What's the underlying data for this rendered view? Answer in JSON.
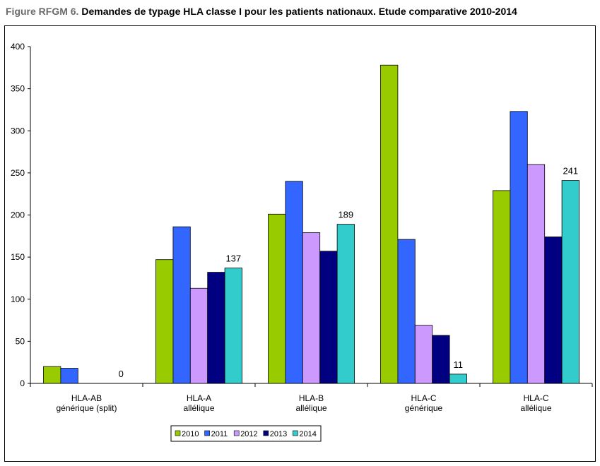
{
  "title_prefix": "Figure RFGM 6.",
  "title_main": "Demandes de typage HLA classe I pour les patients nationaux. Etude comparative 2010-2014",
  "chart_data": {
    "type": "bar",
    "title": "Demandes de typage HLA classe I pour les patients nationaux. Etude comparative 2010-2014",
    "categories": [
      [
        "HLA-AB",
        "générique (split)"
      ],
      [
        "HLA-A",
        "allélique"
      ],
      [
        "HLA-B",
        "allélique"
      ],
      [
        "HLA-C",
        "générique"
      ],
      [
        "HLA-C",
        "allélique"
      ]
    ],
    "series": [
      {
        "name": "2010",
        "color": "#99cc00",
        "values": [
          20,
          147,
          201,
          378,
          229
        ]
      },
      {
        "name": "2011",
        "color": "#3366ff",
        "values": [
          18,
          186,
          240,
          171,
          323
        ]
      },
      {
        "name": "2012",
        "color": "#cc99ff",
        "values": [
          0,
          113,
          179,
          69,
          260
        ]
      },
      {
        "name": "2013",
        "color": "#000080",
        "values": [
          0,
          132,
          157,
          57,
          174
        ]
      },
      {
        "name": "2014",
        "color": "#33cccc",
        "values": [
          0,
          137,
          189,
          11,
          241
        ]
      }
    ],
    "data_labels": [
      {
        "series": "2014",
        "values": [
          "0",
          "137",
          "189",
          "11",
          "241"
        ]
      }
    ],
    "yticks": [
      "0",
      "50",
      "100",
      "150",
      "200",
      "250",
      "300",
      "350",
      "400"
    ],
    "ylim": [
      0,
      400
    ],
    "xlabel": "",
    "ylabel": "",
    "grid": false,
    "legend": "bottom-center"
  }
}
